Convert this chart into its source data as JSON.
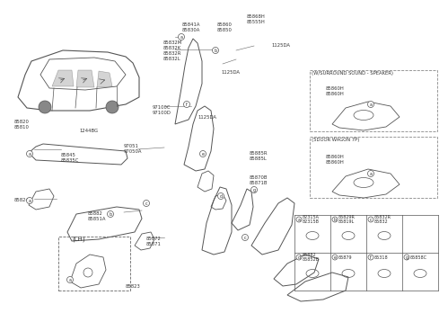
{
  "bg_color": "#ffffff",
  "line_color": "#555555",
  "text_color": "#333333",
  "parts_labels": {
    "top_center": [
      "85868H",
      "85555H"
    ],
    "top_mid": [
      "85841A",
      "85830A"
    ],
    "top_mid2": [
      "85860",
      "85850"
    ],
    "col_labels": [
      "85832M",
      "85832K",
      "85832R",
      "85832L"
    ],
    "mid_left": [
      "85820",
      "85810"
    ],
    "mid_part1": [
      "97100C",
      "97100D"
    ],
    "mid_1244": "1244BG",
    "mid_9705": [
      "97051",
      "97050A"
    ],
    "mid_845": [
      "85845",
      "85835C"
    ],
    "mid_right1": [
      "85885R",
      "85885L"
    ],
    "mid_right2": [
      "85870B",
      "85871B"
    ],
    "low_left1": "85824B",
    "low_left2": [
      "85882",
      "85851A"
    ],
    "low_mid": [
      "85872",
      "85871"
    ],
    "lh_label": "(LH)",
    "lh_part": "85823",
    "ref_1125a": "1125DA",
    "ref_1125b": "1125DA",
    "ref_1125c": "1125DA",
    "surround_title": "(W/SURROUND SOUND - SPEAKER)",
    "surround_parts": [
      "85860H",
      "85860H"
    ],
    "wagon_title": "(5DOOR WAGON 7P)",
    "wagon_parts": [
      "85860H",
      "85860H"
    ],
    "grid_a_label": "82315A\n82315B",
    "grid_b_label": "85829R\n85819L",
    "grid_c_label": "85832R\n85832",
    "grid_d_label": "85882\n85852B",
    "grid_e_num": "85879",
    "grid_f_num": "85318",
    "grid_g_num": "85858C",
    "circle_labels": [
      "a",
      "b",
      "c",
      "d",
      "e",
      "f",
      "g"
    ]
  }
}
